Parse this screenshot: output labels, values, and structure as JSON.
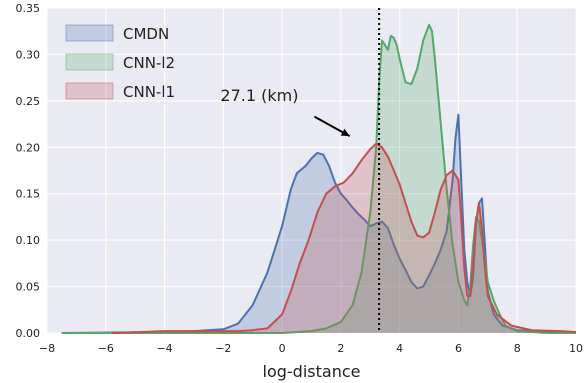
{
  "chart_data": {
    "type": "area",
    "xlabel": "log-distance",
    "ylabel": "",
    "xlim": [
      -8,
      10
    ],
    "ylim": [
      0,
      0.35
    ],
    "xticks": [
      -8,
      -6,
      -4,
      -2,
      0,
      2,
      4,
      6,
      8,
      10
    ],
    "xtick_labels": [
      "−8",
      "−6",
      "−4",
      "−2",
      "0",
      "2",
      "4",
      "6",
      "8",
      "10"
    ],
    "yticks": [
      0,
      0.05,
      0.1,
      0.15,
      0.2,
      0.25,
      0.3,
      0.35
    ],
    "ytick_labels": [
      "0.00",
      "0.05",
      "0.10",
      "0.15",
      "0.20",
      "0.25",
      "0.30",
      "0.35"
    ],
    "grid": true,
    "legend_position": "top-left",
    "background": "#eaeaf2",
    "series": [
      {
        "name": "CMDN",
        "color": "#4c72b0",
        "fill": "#4c72b0",
        "points": [
          [
            -7.5,
            0.0
          ],
          [
            -4,
            0.001
          ],
          [
            -3,
            0.002
          ],
          [
            -2,
            0.004
          ],
          [
            -1.5,
            0.01
          ],
          [
            -1,
            0.03
          ],
          [
            -0.5,
            0.065
          ],
          [
            0,
            0.115
          ],
          [
            0.3,
            0.155
          ],
          [
            0.5,
            0.172
          ],
          [
            0.8,
            0.18
          ],
          [
            1.0,
            0.188
          ],
          [
            1.2,
            0.194
          ],
          [
            1.4,
            0.192
          ],
          [
            1.6,
            0.18
          ],
          [
            1.8,
            0.162
          ],
          [
            2.0,
            0.15
          ],
          [
            2.2,
            0.143
          ],
          [
            2.4,
            0.135
          ],
          [
            2.6,
            0.128
          ],
          [
            2.8,
            0.122
          ],
          [
            3.0,
            0.115
          ],
          [
            3.2,
            0.118
          ],
          [
            3.4,
            0.12
          ],
          [
            3.6,
            0.113
          ],
          [
            3.8,
            0.095
          ],
          [
            4.0,
            0.08
          ],
          [
            4.2,
            0.068
          ],
          [
            4.4,
            0.055
          ],
          [
            4.6,
            0.048
          ],
          [
            4.8,
            0.05
          ],
          [
            5.0,
            0.062
          ],
          [
            5.2,
            0.075
          ],
          [
            5.4,
            0.09
          ],
          [
            5.6,
            0.11
          ],
          [
            5.8,
            0.165
          ],
          [
            5.9,
            0.21
          ],
          [
            6.0,
            0.235
          ],
          [
            6.1,
            0.16
          ],
          [
            6.2,
            0.09
          ],
          [
            6.3,
            0.055
          ],
          [
            6.4,
            0.04
          ],
          [
            6.5,
            0.06
          ],
          [
            6.6,
            0.12
          ],
          [
            6.7,
            0.14
          ],
          [
            6.8,
            0.145
          ],
          [
            6.9,
            0.095
          ],
          [
            7.0,
            0.045
          ],
          [
            7.2,
            0.02
          ],
          [
            7.5,
            0.008
          ],
          [
            8.0,
            0.003
          ],
          [
            9.0,
            0.002
          ],
          [
            10.0,
            0.001
          ]
        ]
      },
      {
        "name": "CNN-l2",
        "color": "#55a868",
        "fill": "#55a868",
        "points": [
          [
            -7.5,
            0.0
          ],
          [
            -2,
            0.0
          ],
          [
            0,
            0.0
          ],
          [
            0.5,
            0.001
          ],
          [
            1.0,
            0.002
          ],
          [
            1.5,
            0.005
          ],
          [
            2.0,
            0.012
          ],
          [
            2.4,
            0.03
          ],
          [
            2.7,
            0.065
          ],
          [
            3.0,
            0.13
          ],
          [
            3.2,
            0.2
          ],
          [
            3.3,
            0.27
          ],
          [
            3.4,
            0.315
          ],
          [
            3.5,
            0.31
          ],
          [
            3.6,
            0.305
          ],
          [
            3.7,
            0.32
          ],
          [
            3.8,
            0.318
          ],
          [
            3.9,
            0.31
          ],
          [
            4.0,
            0.295
          ],
          [
            4.2,
            0.27
          ],
          [
            4.4,
            0.268
          ],
          [
            4.6,
            0.285
          ],
          [
            4.8,
            0.315
          ],
          [
            5.0,
            0.332
          ],
          [
            5.1,
            0.325
          ],
          [
            5.2,
            0.295
          ],
          [
            5.4,
            0.225
          ],
          [
            5.6,
            0.155
          ],
          [
            5.8,
            0.095
          ],
          [
            6.0,
            0.055
          ],
          [
            6.2,
            0.035
          ],
          [
            6.3,
            0.03
          ],
          [
            6.4,
            0.05
          ],
          [
            6.5,
            0.095
          ],
          [
            6.6,
            0.125
          ],
          [
            6.7,
            0.12
          ],
          [
            6.8,
            0.1
          ],
          [
            6.9,
            0.08
          ],
          [
            7.0,
            0.055
          ],
          [
            7.2,
            0.035
          ],
          [
            7.4,
            0.02
          ],
          [
            7.6,
            0.008
          ],
          [
            8.0,
            0.002
          ],
          [
            9.0,
            0.0
          ],
          [
            10.0,
            0.0
          ]
        ]
      },
      {
        "name": "CNN-l1",
        "color": "#c44e52",
        "fill": "#c44e52",
        "points": [
          [
            -5.8,
            0.0
          ],
          [
            -4,
            0.002
          ],
          [
            -3,
            0.002
          ],
          [
            -2,
            0.002
          ],
          [
            -1.5,
            0.002
          ],
          [
            -1,
            0.003
          ],
          [
            -0.5,
            0.005
          ],
          [
            0,
            0.02
          ],
          [
            0.3,
            0.045
          ],
          [
            0.6,
            0.075
          ],
          [
            0.9,
            0.1
          ],
          [
            1.2,
            0.13
          ],
          [
            1.5,
            0.15
          ],
          [
            1.8,
            0.158
          ],
          [
            2.1,
            0.162
          ],
          [
            2.4,
            0.172
          ],
          [
            2.7,
            0.186
          ],
          [
            3.0,
            0.198
          ],
          [
            3.2,
            0.204
          ],
          [
            3.4,
            0.2
          ],
          [
            3.6,
            0.19
          ],
          [
            3.8,
            0.175
          ],
          [
            4.0,
            0.16
          ],
          [
            4.2,
            0.14
          ],
          [
            4.4,
            0.12
          ],
          [
            4.6,
            0.105
          ],
          [
            4.8,
            0.103
          ],
          [
            5.0,
            0.108
          ],
          [
            5.2,
            0.13
          ],
          [
            5.4,
            0.155
          ],
          [
            5.6,
            0.17
          ],
          [
            5.8,
            0.175
          ],
          [
            6.0,
            0.165
          ],
          [
            6.1,
            0.12
          ],
          [
            6.2,
            0.07
          ],
          [
            6.3,
            0.04
          ],
          [
            6.4,
            0.04
          ],
          [
            6.5,
            0.075
          ],
          [
            6.6,
            0.12
          ],
          [
            6.7,
            0.14
          ],
          [
            6.8,
            0.11
          ],
          [
            6.9,
            0.07
          ],
          [
            7.0,
            0.04
          ],
          [
            7.3,
            0.02
          ],
          [
            7.8,
            0.008
          ],
          [
            8.5,
            0.003
          ],
          [
            9.5,
            0.002
          ],
          [
            10.0,
            0.001
          ]
        ]
      }
    ],
    "annotations": [
      {
        "type": "vline",
        "x": 3.3,
        "style": "dotted",
        "color": "#000000"
      },
      {
        "type": "text",
        "text": "27.1 (km)",
        "x": -2.1,
        "y": 0.25
      },
      {
        "type": "arrow",
        "from": [
          1.1,
          0.233
        ],
        "to": [
          2.3,
          0.212
        ],
        "color": "#000000"
      }
    ]
  }
}
